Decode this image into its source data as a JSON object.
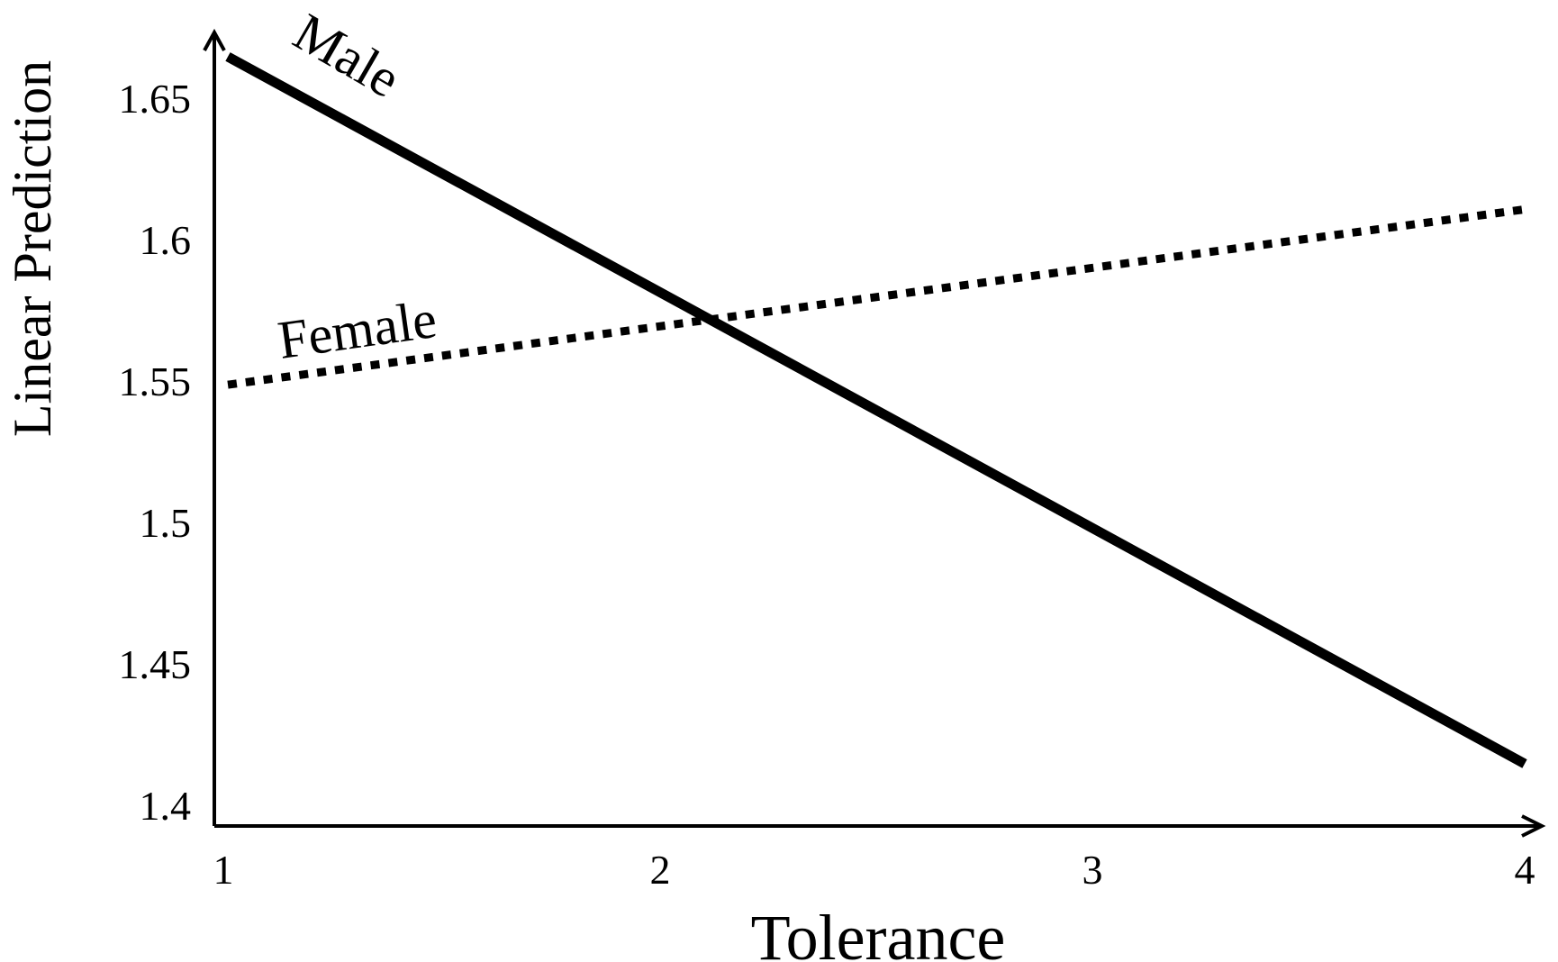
{
  "chart_data": {
    "type": "line",
    "title": "",
    "xlabel": "Tolerance",
    "ylabel": "Linear Prediction",
    "x": [
      1,
      4
    ],
    "xlim": [
      1,
      4
    ],
    "ylim": [
      1.4,
      1.65
    ],
    "xticks": [
      "1",
      "2",
      "3",
      "4"
    ],
    "yticks": [
      "1.4",
      "1.45",
      "1.5",
      "1.55",
      "1.6",
      "1.65"
    ],
    "grid": false,
    "legend": "none (series labelled directly on the lines)",
    "series": [
      {
        "name": "Male",
        "values": [
          1.665,
          1.415
        ],
        "style": "solid",
        "color": "#000000"
      },
      {
        "name": "Female",
        "values": [
          1.549,
          1.611
        ],
        "style": "dotted",
        "color": "#000000"
      }
    ]
  }
}
